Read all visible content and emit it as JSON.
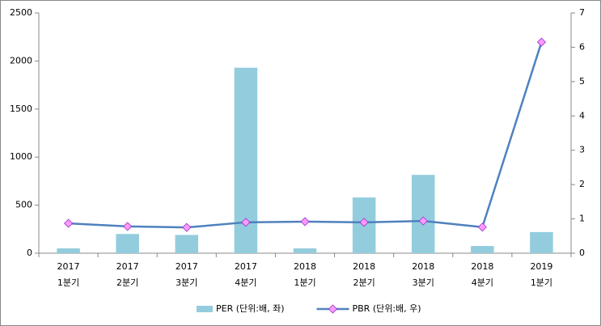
{
  "chart_data": {
    "type": "bar-line",
    "categories": [
      [
        "2017",
        "1분기"
      ],
      [
        "2017",
        "2분기"
      ],
      [
        "2017",
        "3분기"
      ],
      [
        "2017",
        "4분기"
      ],
      [
        "2018",
        "1분기"
      ],
      [
        "2018",
        "2분기"
      ],
      [
        "2018",
        "3분기"
      ],
      [
        "2018",
        "4분기"
      ],
      [
        "2019",
        "1분기"
      ]
    ],
    "series": [
      {
        "name": "PER (단위:배, 좌)",
        "type": "bar",
        "color": "#93cddd",
        "values": [
          50,
          200,
          190,
          1930,
          50,
          580,
          815,
          75,
          220
        ]
      },
      {
        "name": "PBR (단위:배, 우)",
        "type": "line",
        "axis": "y2",
        "color": "#4f81bd",
        "marker_color": "#ff99ff",
        "values": [
          0.87,
          0.78,
          0.75,
          0.9,
          0.92,
          0.9,
          0.94,
          0.76,
          6.15
        ]
      }
    ],
    "ylim": [
      0,
      2500
    ],
    "yticks": [
      0,
      500,
      1000,
      1500,
      2000,
      2500
    ],
    "y2lim": [
      0,
      7
    ],
    "y2ticks": [
      0,
      1,
      2,
      3,
      4,
      5,
      6,
      7
    ],
    "legend": "bottom"
  }
}
